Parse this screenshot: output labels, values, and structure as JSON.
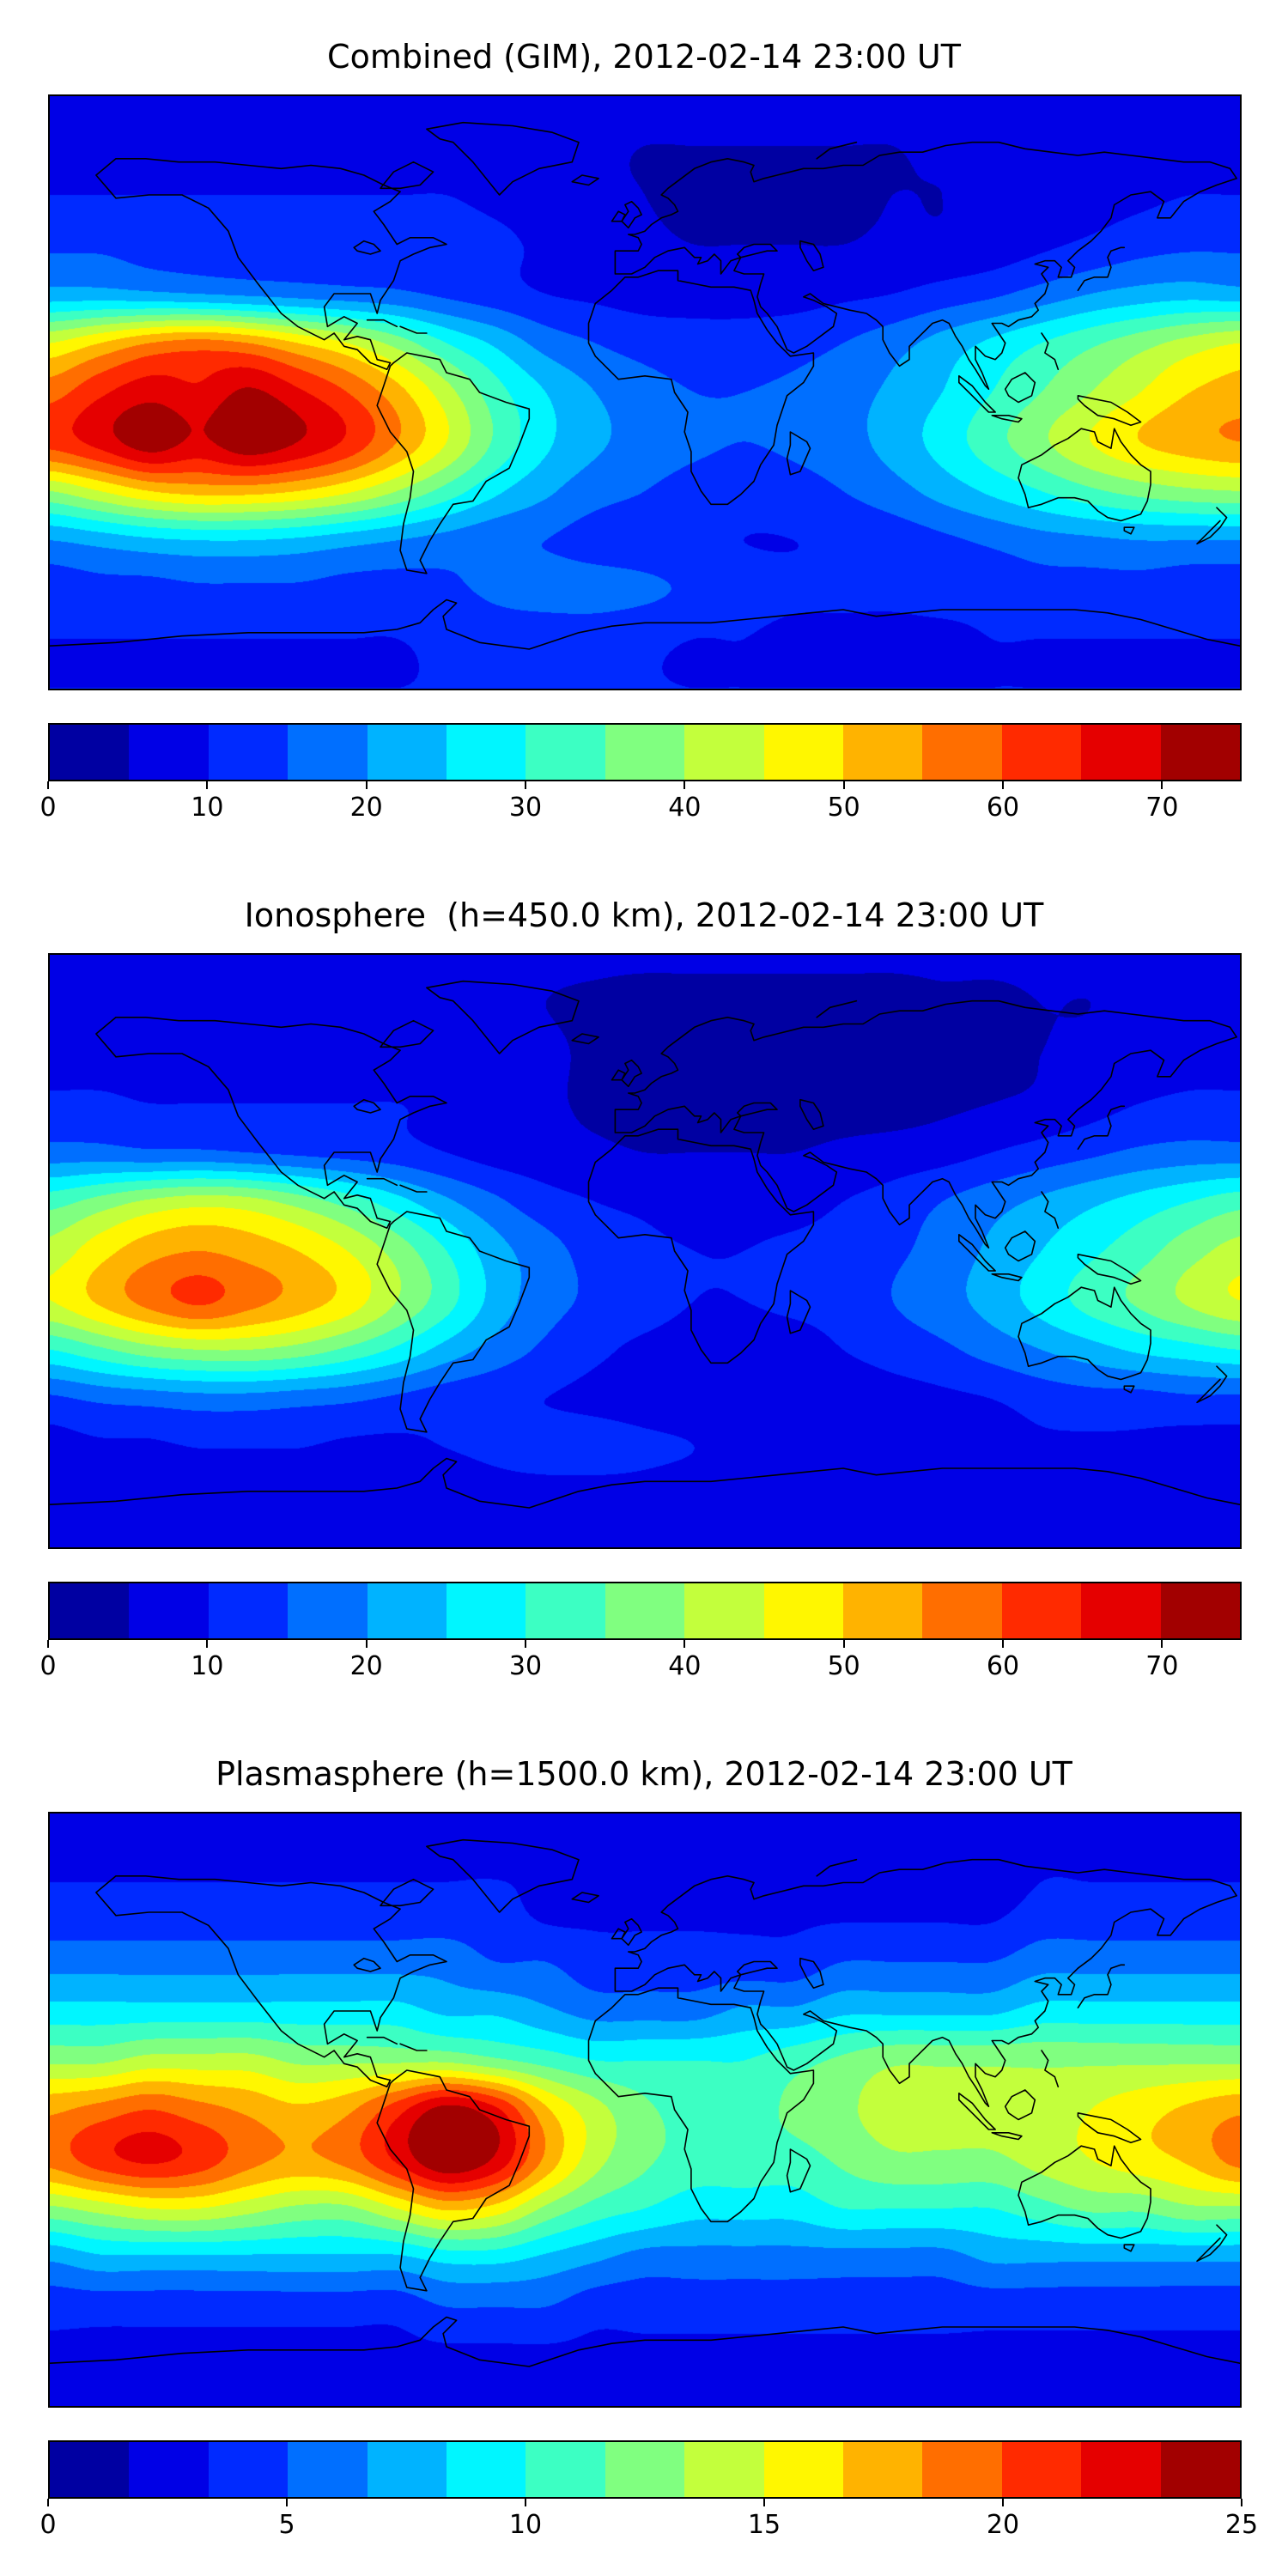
{
  "figure": {
    "background": "#ffffff",
    "colormap": "jet",
    "n_levels": 15,
    "map_extent": {
      "lon_min": -180,
      "lon_max": 180,
      "lat_min": -90,
      "lat_max": 90
    },
    "grid": false,
    "colorbar_position": "bottom",
    "accent_colors": {
      "coastline": "#000000",
      "low": "#0000a1",
      "high": "#a10000"
    }
  },
  "chart_data": [
    {
      "type": "heatmap",
      "subtype": "filled-contour-map",
      "title": "Combined (GIM), 2012-02-14 23:00 UT",
      "colormap": "jet",
      "vmin": 0,
      "vmax": 75,
      "n_levels": 15,
      "colorbar_ticks": [
        0,
        10,
        20,
        30,
        40,
        50,
        60,
        70
      ],
      "lon": [
        -180,
        -165,
        -150,
        -135,
        -120,
        -105,
        -90,
        -75,
        -60,
        -45,
        -30,
        -15,
        0,
        15,
        30,
        45,
        60,
        75,
        90,
        105,
        120,
        135,
        150,
        165,
        180
      ],
      "lat": [
        90,
        75,
        60,
        45,
        30,
        15,
        0,
        -15,
        -30,
        -45,
        -60,
        -75,
        -90
      ],
      "values": [
        [
          8,
          8,
          8,
          8,
          8,
          8,
          8,
          8,
          8,
          8,
          8,
          8,
          8,
          8,
          8,
          8,
          8,
          8,
          8,
          8,
          8,
          8,
          8,
          8,
          8
        ],
        [
          8,
          8,
          8,
          8,
          8,
          8,
          8,
          8,
          8,
          8,
          7,
          6,
          5,
          5,
          5,
          5,
          5,
          5,
          6,
          6,
          7,
          7,
          8,
          8,
          8
        ],
        [
          10,
          10,
          10,
          10,
          10,
          10,
          10,
          10,
          10,
          9,
          8,
          6,
          5,
          4,
          4,
          4,
          4,
          5,
          5,
          6,
          7,
          8,
          9,
          10,
          10
        ],
        [
          14,
          14,
          13,
          13,
          13,
          13,
          13,
          13,
          12,
          11,
          9,
          7,
          6,
          5,
          5,
          5,
          5,
          6,
          6,
          7,
          9,
          11,
          13,
          14,
          14
        ],
        [
          22,
          22,
          21,
          20,
          19,
          18,
          17,
          16,
          14,
          12,
          10,
          9,
          8,
          8,
          8,
          8,
          9,
          10,
          12,
          14,
          17,
          20,
          22,
          23,
          22
        ],
        [
          45,
          50,
          55,
          57,
          55,
          50,
          45,
          38,
          30,
          24,
          18,
          15,
          13,
          12,
          12,
          13,
          15,
          18,
          22,
          26,
          30,
          34,
          38,
          42,
          45
        ],
        [
          58,
          64,
          68,
          66,
          71,
          66,
          60,
          52,
          42,
          32,
          25,
          20,
          17,
          15,
          15,
          16,
          18,
          21,
          25,
          30,
          35,
          40,
          45,
          50,
          52
        ],
        [
          62,
          67,
          73,
          69,
          74,
          70,
          64,
          55,
          45,
          34,
          26,
          21,
          18,
          16,
          15,
          16,
          18,
          22,
          27,
          33,
          39,
          45,
          50,
          53,
          55
        ],
        [
          40,
          45,
          50,
          52,
          52,
          50,
          46,
          40,
          33,
          26,
          21,
          17,
          15,
          13,
          12,
          13,
          15,
          18,
          22,
          26,
          30,
          34,
          37,
          39,
          40
        ],
        [
          20,
          22,
          24,
          25,
          25,
          24,
          22,
          20,
          18,
          16,
          15,
          13,
          12,
          11,
          10,
          10,
          11,
          12,
          14,
          16,
          18,
          19,
          20,
          20,
          20
        ],
        [
          12,
          13,
          13,
          14,
          14,
          14,
          13,
          13,
          14,
          16,
          17,
          17,
          16,
          14,
          12,
          11,
          11,
          11,
          12,
          12,
          13,
          13,
          13,
          12,
          12
        ],
        [
          10,
          10,
          10,
          10,
          10,
          10,
          10,
          10,
          11,
          12,
          12,
          12,
          11,
          10,
          10,
          9,
          9,
          9,
          9,
          10,
          10,
          10,
          10,
          10,
          10
        ],
        [
          10,
          10,
          10,
          10,
          10,
          10,
          10,
          10,
          10,
          10,
          10,
          10,
          10,
          10,
          10,
          10,
          10,
          10,
          10,
          10,
          10,
          10,
          10,
          10,
          10
        ]
      ]
    },
    {
      "type": "heatmap",
      "subtype": "filled-contour-map",
      "title": "Ionosphere  (h=450.0 km), 2012-02-14 23:00 UT",
      "colormap": "jet",
      "vmin": 0,
      "vmax": 75,
      "n_levels": 15,
      "colorbar_ticks": [
        0,
        10,
        20,
        30,
        40,
        50,
        60,
        70
      ],
      "lon": [
        -180,
        -165,
        -150,
        -135,
        -120,
        -105,
        -90,
        -75,
        -60,
        -45,
        -30,
        -15,
        0,
        15,
        30,
        45,
        60,
        75,
        90,
        105,
        120,
        135,
        150,
        165,
        180
      ],
      "lat": [
        90,
        75,
        60,
        45,
        30,
        15,
        0,
        -15,
        -30,
        -45,
        -60,
        -75,
        -90
      ],
      "values": [
        [
          6,
          6,
          6,
          6,
          6,
          6,
          6,
          6,
          6,
          6,
          6,
          6,
          6,
          6,
          6,
          6,
          6,
          6,
          6,
          6,
          6,
          6,
          6,
          6,
          6
        ],
        [
          6,
          6,
          6,
          6,
          6,
          6,
          6,
          6,
          6,
          6,
          5,
          4,
          3,
          3,
          3,
          3,
          3,
          3,
          4,
          4,
          5,
          5,
          6,
          6,
          6
        ],
        [
          8,
          8,
          8,
          8,
          8,
          8,
          8,
          8,
          8,
          7,
          6,
          4,
          3,
          2,
          2,
          2,
          2,
          3,
          3,
          4,
          5,
          6,
          7,
          8,
          8
        ],
        [
          11,
          11,
          10,
          10,
          10,
          10,
          10,
          10,
          9,
          8,
          6,
          4,
          3,
          3,
          3,
          3,
          3,
          3,
          4,
          5,
          6,
          8,
          10,
          11,
          11
        ],
        [
          17,
          17,
          16,
          16,
          15,
          14,
          13,
          12,
          10,
          8,
          7,
          6,
          5,
          5,
          5,
          5,
          6,
          7,
          8,
          10,
          12,
          14,
          16,
          17,
          17
        ],
        [
          33,
          37,
          41,
          43,
          42,
          38,
          33,
          27,
          21,
          16,
          12,
          10,
          9,
          8,
          8,
          8,
          10,
          12,
          15,
          18,
          21,
          24,
          27,
          30,
          33
        ],
        [
          42,
          48,
          53,
          55,
          53,
          50,
          45,
          38,
          30,
          22,
          17,
          13,
          11,
          10,
          10,
          11,
          12,
          14,
          17,
          21,
          25,
          29,
          33,
          38,
          42
        ],
        [
          45,
          51,
          57,
          61,
          57,
          53,
          48,
          40,
          32,
          23,
          17,
          14,
          12,
          10,
          10,
          11,
          12,
          15,
          18,
          22,
          27,
          32,
          36,
          41,
          45
        ],
        [
          30,
          34,
          38,
          40,
          40,
          38,
          34,
          29,
          23,
          18,
          14,
          11,
          9,
          8,
          8,
          8,
          10,
          12,
          14,
          17,
          20,
          23,
          26,
          28,
          30
        ],
        [
          14,
          16,
          17,
          18,
          18,
          17,
          16,
          14,
          12,
          11,
          10,
          9,
          8,
          7,
          7,
          7,
          7,
          8,
          9,
          10,
          12,
          13,
          13,
          14,
          14
        ],
        [
          8,
          9,
          9,
          10,
          10,
          10,
          9,
          9,
          10,
          11,
          12,
          12,
          11,
          10,
          8,
          7,
          7,
          7,
          8,
          8,
          9,
          9,
          9,
          8,
          8
        ],
        [
          7,
          7,
          7,
          7,
          7,
          7,
          7,
          7,
          7,
          8,
          8,
          8,
          8,
          7,
          7,
          6,
          6,
          6,
          6,
          7,
          7,
          7,
          7,
          7,
          7
        ],
        [
          7,
          7,
          7,
          7,
          7,
          7,
          7,
          7,
          7,
          7,
          7,
          7,
          7,
          7,
          7,
          7,
          7,
          7,
          7,
          7,
          7,
          7,
          7,
          7,
          7
        ]
      ]
    },
    {
      "type": "heatmap",
      "subtype": "filled-contour-map",
      "title": "Plasmasphere (h=1500.0 km), 2012-02-14 23:00 UT",
      "colormap": "jet",
      "vmin": 0,
      "vmax": 25,
      "n_levels": 15,
      "colorbar_ticks": [
        0,
        5,
        10,
        15,
        20,
        25
      ],
      "lon": [
        -180,
        -165,
        -150,
        -135,
        -120,
        -105,
        -90,
        -75,
        -60,
        -45,
        -30,
        -15,
        0,
        15,
        30,
        45,
        60,
        75,
        90,
        105,
        120,
        135,
        150,
        165,
        180
      ],
      "lat": [
        90,
        75,
        60,
        45,
        30,
        15,
        0,
        -15,
        -30,
        -45,
        -60,
        -75,
        -90
      ],
      "values": [
        [
          2,
          2,
          2,
          2,
          2,
          2,
          2,
          2,
          2,
          2,
          2,
          2,
          2,
          2,
          2,
          2,
          2,
          2,
          2,
          2,
          2,
          2,
          2,
          2,
          2
        ],
        [
          3,
          3,
          3,
          3,
          3,
          3,
          3,
          3,
          3,
          3,
          3,
          2,
          2,
          2,
          2,
          2,
          2,
          2,
          2,
          2,
          3,
          3,
          3,
          3,
          3
        ],
        [
          4,
          4,
          4,
          4,
          4,
          4,
          4,
          4,
          4,
          4,
          3,
          3,
          3,
          3,
          3,
          3,
          3,
          3,
          3,
          3,
          4,
          4,
          4,
          4,
          4
        ],
        [
          6,
          6,
          6,
          6,
          6,
          6,
          6,
          6,
          6,
          5,
          5,
          4,
          4,
          4,
          4,
          4,
          5,
          5,
          5,
          5,
          6,
          6,
          6,
          6,
          6
        ],
        [
          9,
          9,
          9,
          9,
          9,
          9,
          9,
          9,
          8,
          8,
          7,
          6,
          6,
          6,
          7,
          7,
          8,
          8,
          8,
          8,
          9,
          9,
          9,
          9,
          9
        ],
        [
          13,
          13,
          14,
          14,
          14,
          13,
          13,
          13,
          13,
          12,
          11,
          10,
          10,
          10,
          10,
          11,
          12,
          13,
          13,
          13,
          13,
          13,
          13,
          13,
          13
        ],
        [
          18,
          19,
          20,
          19,
          18,
          17,
          18,
          21,
          24,
          22,
          17,
          14,
          12,
          11,
          11,
          12,
          13,
          14,
          14,
          14,
          14,
          15,
          16,
          17,
          18
        ],
        [
          19,
          21,
          22,
          21,
          19,
          18,
          19,
          22,
          25,
          23,
          18,
          14,
          12,
          11,
          11,
          11,
          12,
          13,
          13,
          13,
          14,
          15,
          16,
          17,
          19
        ],
        [
          13,
          14,
          15,
          15,
          14,
          13,
          13,
          15,
          17,
          16,
          13,
          11,
          10,
          9,
          9,
          9,
          10,
          10,
          10,
          10,
          11,
          12,
          12,
          13,
          13
        ],
        [
          7,
          8,
          8,
          8,
          8,
          8,
          8,
          8,
          9,
          9,
          8,
          7,
          6,
          6,
          6,
          6,
          6,
          6,
          6,
          7,
          7,
          7,
          7,
          7,
          7
        ],
        [
          4,
          4,
          4,
          4,
          4,
          4,
          4,
          4,
          5,
          5,
          5,
          4,
          4,
          4,
          4,
          4,
          4,
          4,
          4,
          4,
          4,
          4,
          4,
          4,
          4
        ],
        [
          3,
          3,
          3,
          3,
          3,
          3,
          3,
          3,
          3,
          3,
          3,
          3,
          3,
          3,
          3,
          3,
          3,
          3,
          3,
          3,
          3,
          3,
          3,
          3,
          3
        ],
        [
          3,
          3,
          3,
          3,
          3,
          3,
          3,
          3,
          3,
          3,
          3,
          3,
          3,
          3,
          3,
          3,
          3,
          3,
          3,
          3,
          3,
          3,
          3,
          3,
          3
        ]
      ]
    }
  ]
}
